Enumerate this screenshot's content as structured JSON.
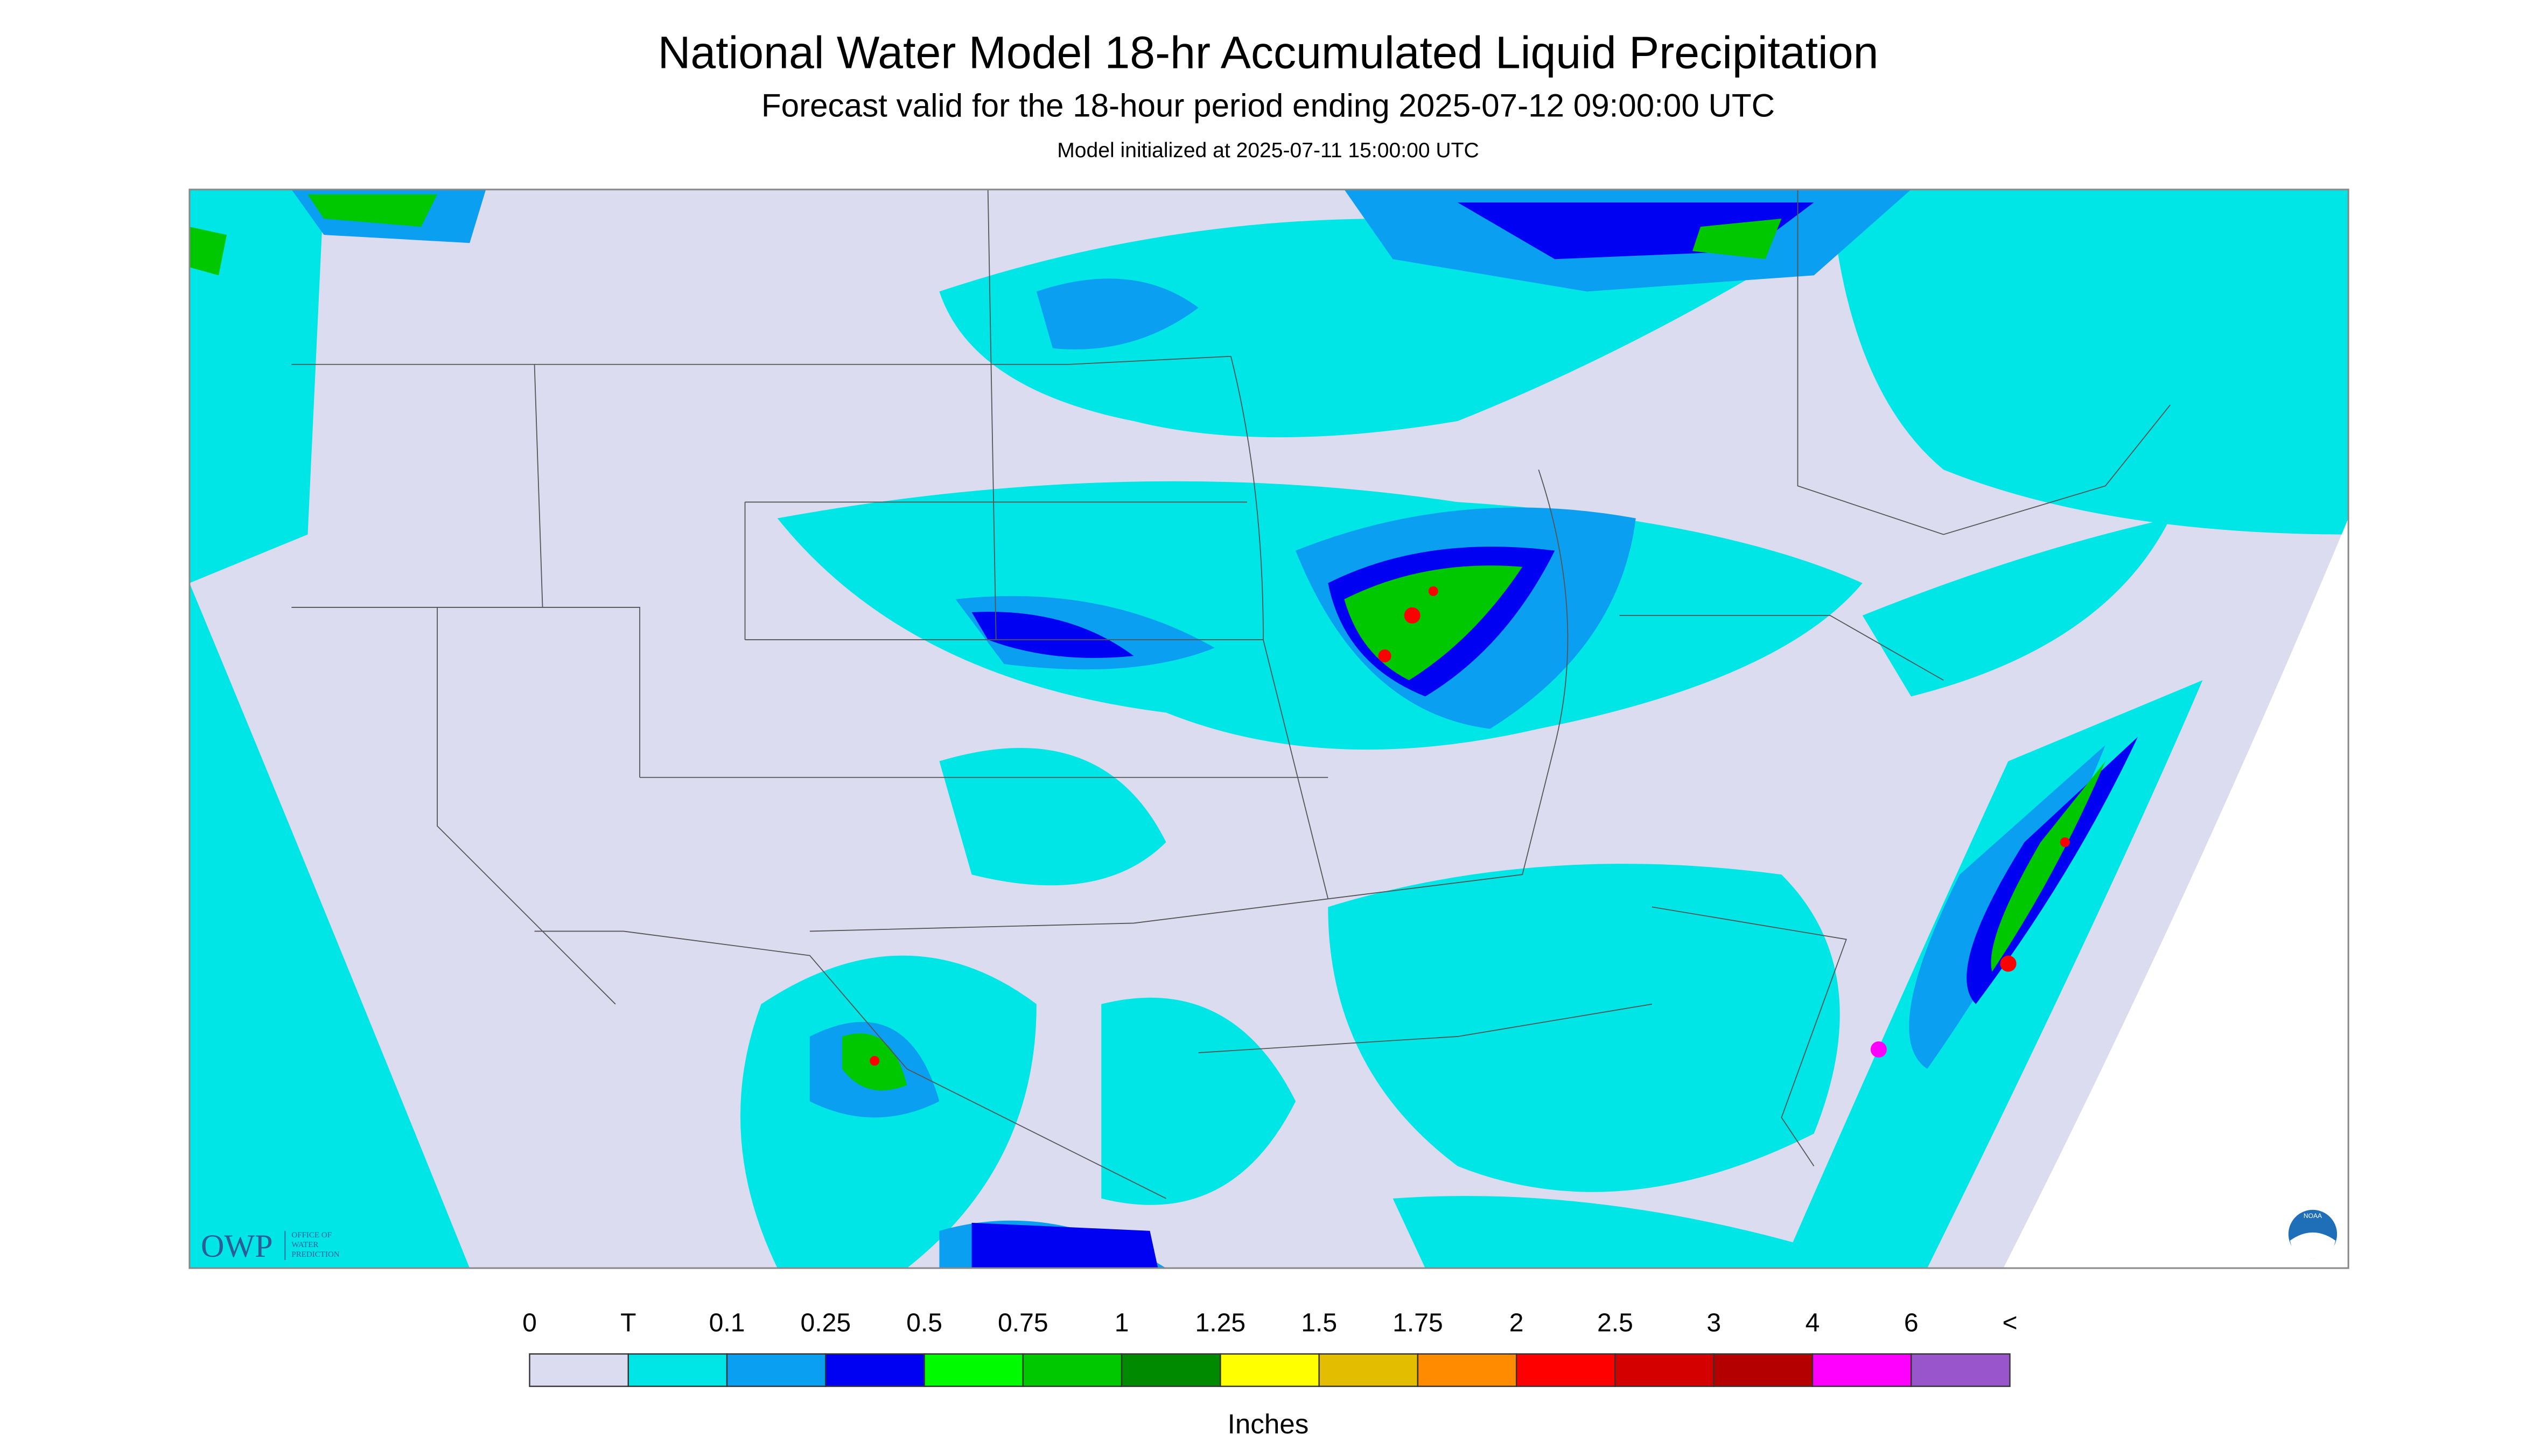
{
  "header": {
    "title": "National Water Model 18-hr Accumulated Liquid Precipitation",
    "subtitle": "Forecast valid for the 18-hour period ending 2025-07-12 09:00:00 UTC",
    "note": "Model initialized at 2025-07-11 15:00:00 UTC"
  },
  "logos": {
    "owp": "OWP",
    "owp_line1": "OFFICE OF",
    "owp_line2": "WATER",
    "owp_line3": "PREDICTION",
    "noaa": "NOAA"
  },
  "legend": {
    "labels": [
      "0",
      "T",
      "0.1",
      "0.25",
      "0.5",
      "0.75",
      "1",
      "1.25",
      "1.5",
      "1.75",
      "2",
      "2.5",
      "3",
      "4",
      "6",
      "<"
    ],
    "colors": [
      "#dcdcf0",
      "#00e6e6",
      "#0a9ff0",
      "#0000f2",
      "#00fa00",
      "#00c800",
      "#008a00",
      "#ffff00",
      "#e3bd00",
      "#ff8c00",
      "#ff0000",
      "#d40000",
      "#b50000",
      "#ff00ff",
      "#9955cc"
    ],
    "unit": "Inches"
  }
}
